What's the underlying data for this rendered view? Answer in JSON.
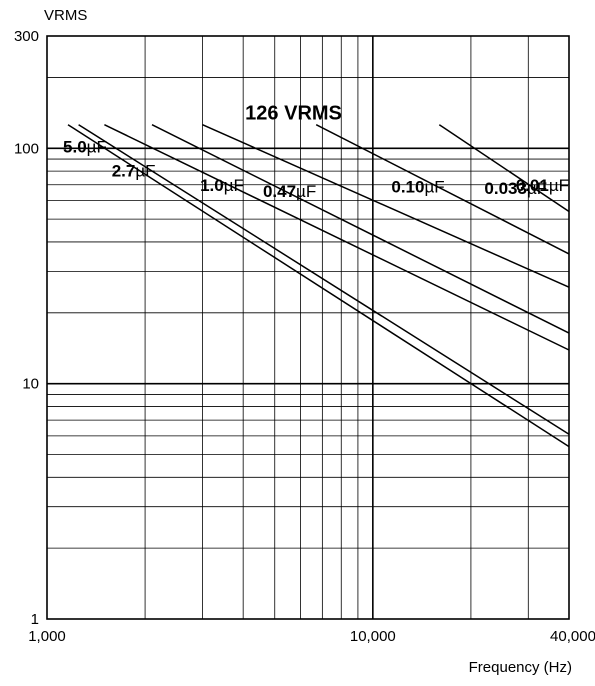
{
  "chart_data": {
    "type": "line",
    "title": "",
    "xlabel": "Frequency (Hz)",
    "ylabel": "VRMS",
    "x_scale": "log",
    "y_scale": "log",
    "xlim": [
      1000,
      40000
    ],
    "ylim": [
      1,
      300
    ],
    "grid": true,
    "x_tick_labels": [
      {
        "value": 1000,
        "label": "1,000"
      },
      {
        "value": 10000,
        "label": "10,000"
      },
      {
        "value": 40000,
        "label": "40,000"
      }
    ],
    "y_tick_labels": [
      {
        "value": 1,
        "label": "1"
      },
      {
        "value": 10,
        "label": "10"
      },
      {
        "value": 100,
        "label": "100"
      },
      {
        "value": 300,
        "label": "300"
      }
    ],
    "annotation": {
      "text": "126 VRMS",
      "x": 6200,
      "y": 126
    },
    "series": [
      {
        "name": "5.0",
        "unit": "µF",
        "label_x": 1120,
        "label_y": 96,
        "points": [
          [
            1160,
            126
          ],
          [
            40000,
            5.4
          ]
        ]
      },
      {
        "name": "2.7",
        "unit": "µF",
        "label_x": 1580,
        "label_y": 76,
        "points": [
          [
            1250,
            126
          ],
          [
            40000,
            6.1
          ]
        ]
      },
      {
        "name": "1.0",
        "unit": "µF",
        "label_x": 2950,
        "label_y": 66,
        "points": [
          [
            1500,
            126
          ],
          [
            40000,
            13.9
          ]
        ]
      },
      {
        "name": "0.47",
        "unit": "µF",
        "label_x": 4600,
        "label_y": 62,
        "points": [
          [
            2100,
            126
          ],
          [
            40000,
            16.4
          ]
        ]
      },
      {
        "name": "0.10",
        "unit": "µF",
        "label_x": 11400,
        "label_y": 65,
        "points": [
          [
            3000,
            126
          ],
          [
            40000,
            25.7
          ]
        ]
      },
      {
        "name": "0.033",
        "unit": "µF",
        "label_x": 22000,
        "label_y": 64,
        "points": [
          [
            6700,
            126
          ],
          [
            40000,
            35.6
          ]
        ]
      },
      {
        "name": "0.01",
        "unit": "µF",
        "label_x": 40700,
        "label_y": 66,
        "points": [
          [
            16000,
            126
          ],
          [
            40000,
            53.9
          ]
        ]
      }
    ]
  }
}
